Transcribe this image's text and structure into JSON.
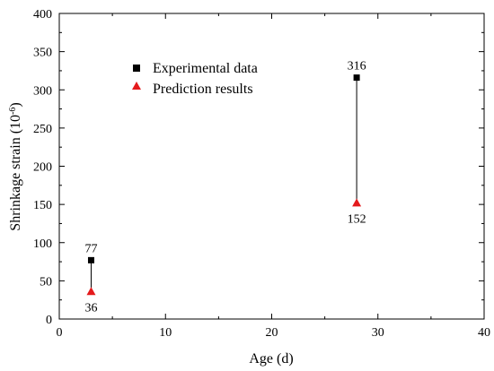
{
  "chart_data": {
    "type": "scatter",
    "xlabel": "Age (d)",
    "ylabel_main": "Shrinkage strain (10",
    "ylabel_exp": "-6",
    "ylabel_close": ")",
    "xlim": [
      0,
      40
    ],
    "ylim": [
      0,
      400
    ],
    "xticks": [
      0,
      10,
      20,
      30,
      40
    ],
    "yticks": [
      0,
      50,
      100,
      150,
      200,
      250,
      300,
      350,
      400
    ],
    "grid": false,
    "legend_position": "upper-left",
    "series": [
      {
        "name": "Experimental data",
        "marker": "square",
        "color": "#000000",
        "points": [
          {
            "x": 3,
            "y": 77,
            "label": "77"
          },
          {
            "x": 28,
            "y": 316,
            "label": "316"
          }
        ]
      },
      {
        "name": "Prediction results",
        "marker": "triangle",
        "color": "#e41a1c",
        "points": [
          {
            "x": 3,
            "y": 36,
            "label": "36"
          },
          {
            "x": 28,
            "y": 152,
            "label": "152"
          }
        ]
      }
    ]
  }
}
